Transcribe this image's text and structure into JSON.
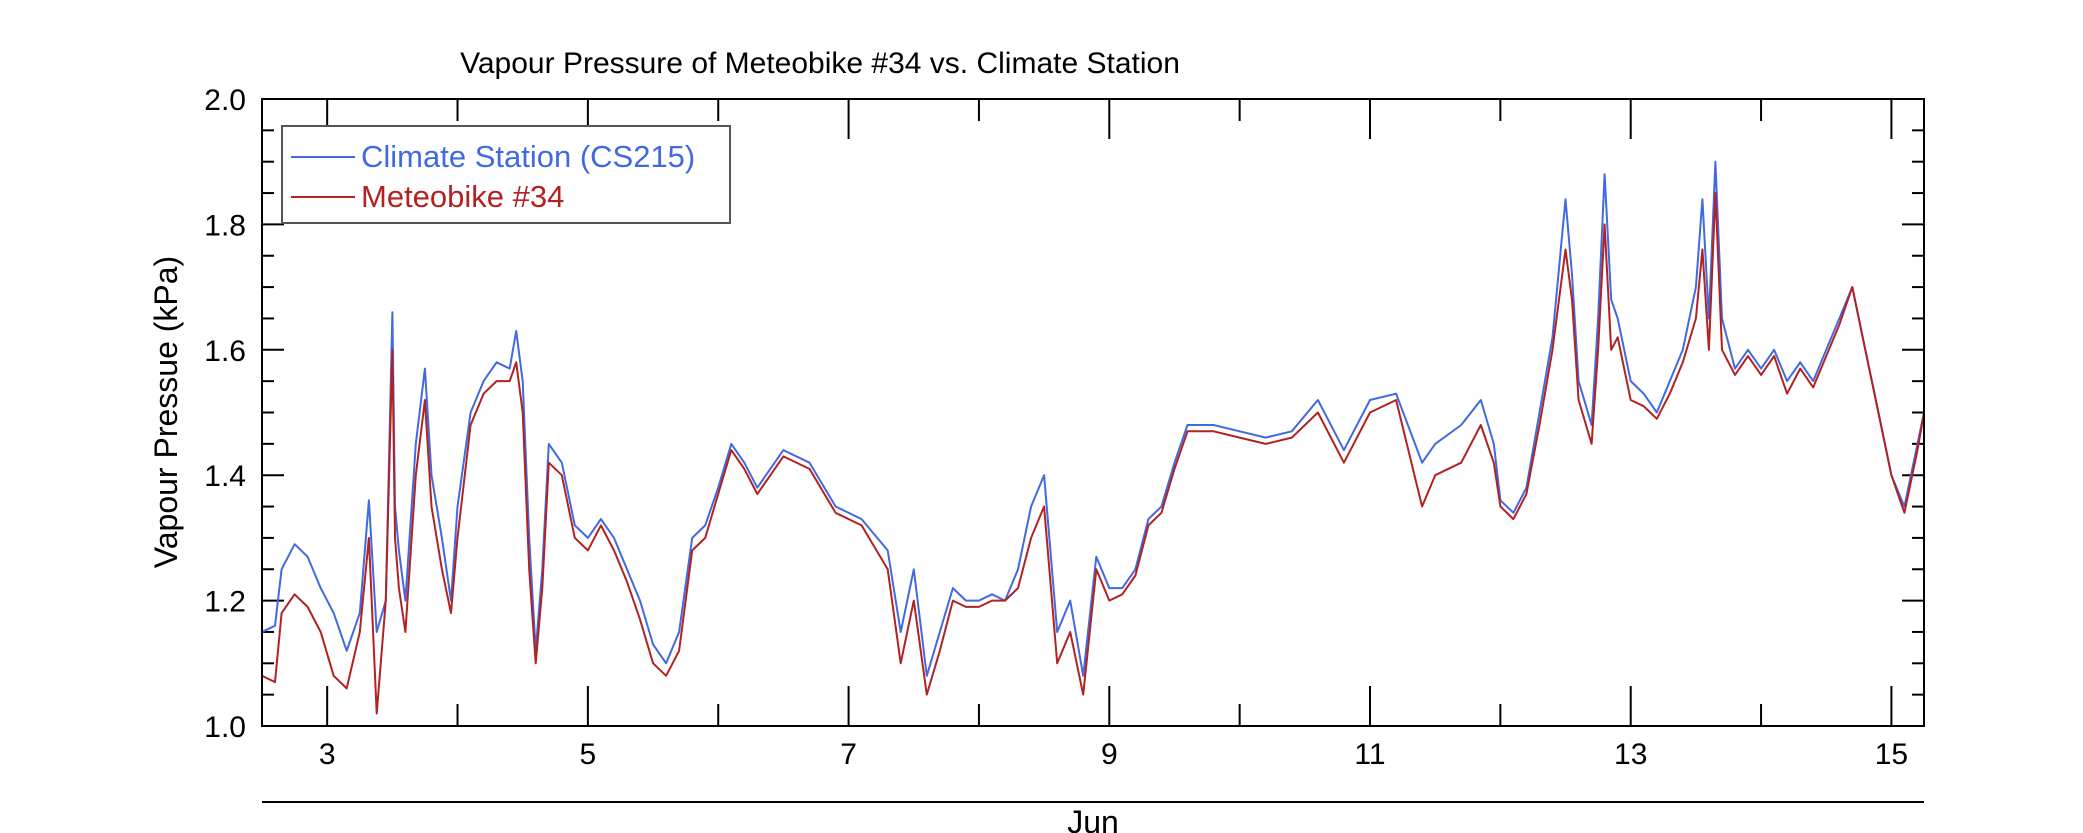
{
  "chart_data": {
    "type": "line",
    "title": "Vapour Pressure of Meteobike #34 vs. Climate Station",
    "ylabel": "Vapour Pressue (kPa)",
    "xlabel": "Jun",
    "xlim": [
      2.5,
      15.25
    ],
    "ylim": [
      1.0,
      2.0
    ],
    "x_ticks": [
      3,
      5,
      7,
      9,
      11,
      13,
      15
    ],
    "x_tick_labels": [
      "3",
      "5",
      "7",
      "9",
      "11",
      "13",
      "15"
    ],
    "y_ticks": [
      1.0,
      1.2,
      1.4,
      1.6,
      1.8,
      2.0
    ],
    "y_tick_labels": [
      "1.0",
      "1.2",
      "1.4",
      "1.6",
      "1.8",
      "2.0"
    ],
    "grid": false,
    "legend_position": "top-left",
    "series": [
      {
        "name": "Climate Station (CS215)",
        "color": "#4169e1",
        "x": [
          2.5,
          2.6,
          2.65,
          2.75,
          2.85,
          2.95,
          3.05,
          3.15,
          3.25,
          3.32,
          3.38,
          3.45,
          3.5,
          3.52,
          3.55,
          3.6,
          3.68,
          3.75,
          3.8,
          3.88,
          3.95,
          4.0,
          4.1,
          4.2,
          4.3,
          4.4,
          4.45,
          4.5,
          4.55,
          4.6,
          4.65,
          4.7,
          4.8,
          4.9,
          5.0,
          5.1,
          5.2,
          5.3,
          5.4,
          5.5,
          5.6,
          5.7,
          5.8,
          5.9,
          6.0,
          6.1,
          6.2,
          6.3,
          6.5,
          6.7,
          6.9,
          7.1,
          7.3,
          7.4,
          7.5,
          7.6,
          7.7,
          7.8,
          7.9,
          8.0,
          8.1,
          8.2,
          8.3,
          8.4,
          8.5,
          8.6,
          8.7,
          8.8,
          8.9,
          9.0,
          9.1,
          9.2,
          9.3,
          9.4,
          9.5,
          9.6,
          9.8,
          10.0,
          10.2,
          10.4,
          10.6,
          10.8,
          11.0,
          11.2,
          11.4,
          11.5,
          11.7,
          11.85,
          11.95,
          12.0,
          12.1,
          12.2,
          12.3,
          12.4,
          12.5,
          12.55,
          12.6,
          12.7,
          12.75,
          12.8,
          12.85,
          12.9,
          13.0,
          13.1,
          13.2,
          13.3,
          13.4,
          13.5,
          13.55,
          13.6,
          13.65,
          13.7,
          13.8,
          13.9,
          14.0,
          14.1,
          14.2,
          14.3,
          14.4,
          14.5,
          14.6,
          14.7,
          14.8,
          14.9,
          15.0,
          15.1,
          15.2,
          15.25
        ],
        "y": [
          1.15,
          1.16,
          1.25,
          1.29,
          1.27,
          1.22,
          1.18,
          1.12,
          1.18,
          1.36,
          1.15,
          1.2,
          1.66,
          1.35,
          1.28,
          1.2,
          1.45,
          1.57,
          1.4,
          1.3,
          1.2,
          1.35,
          1.5,
          1.55,
          1.58,
          1.57,
          1.63,
          1.55,
          1.3,
          1.12,
          1.25,
          1.45,
          1.42,
          1.32,
          1.3,
          1.33,
          1.3,
          1.25,
          1.2,
          1.13,
          1.1,
          1.15,
          1.3,
          1.32,
          1.38,
          1.45,
          1.42,
          1.38,
          1.44,
          1.42,
          1.35,
          1.33,
          1.28,
          1.15,
          1.25,
          1.08,
          1.15,
          1.22,
          1.2,
          1.2,
          1.21,
          1.2,
          1.25,
          1.35,
          1.4,
          1.15,
          1.2,
          1.08,
          1.27,
          1.22,
          1.22,
          1.25,
          1.33,
          1.35,
          1.42,
          1.48,
          1.48,
          1.47,
          1.46,
          1.47,
          1.52,
          1.44,
          1.52,
          1.53,
          1.42,
          1.45,
          1.48,
          1.52,
          1.45,
          1.36,
          1.34,
          1.38,
          1.5,
          1.62,
          1.84,
          1.72,
          1.55,
          1.48,
          1.65,
          1.88,
          1.68,
          1.65,
          1.55,
          1.53,
          1.5,
          1.55,
          1.6,
          1.7,
          1.84,
          1.65,
          1.9,
          1.65,
          1.57,
          1.6,
          1.57,
          1.6,
          1.55,
          1.58,
          1.55,
          1.6,
          1.65,
          1.7,
          1.6,
          1.5,
          1.4,
          1.35,
          1.45,
          1.5
        ]
      },
      {
        "name": "Meteobike #34",
        "color": "#b22222",
        "x": [
          2.5,
          2.6,
          2.65,
          2.75,
          2.85,
          2.95,
          3.05,
          3.15,
          3.25,
          3.32,
          3.38,
          3.45,
          3.5,
          3.52,
          3.55,
          3.6,
          3.68,
          3.75,
          3.8,
          3.88,
          3.95,
          4.0,
          4.1,
          4.2,
          4.3,
          4.4,
          4.45,
          4.5,
          4.55,
          4.6,
          4.65,
          4.7,
          4.8,
          4.9,
          5.0,
          5.1,
          5.2,
          5.3,
          5.4,
          5.5,
          5.6,
          5.7,
          5.8,
          5.9,
          6.0,
          6.1,
          6.2,
          6.3,
          6.5,
          6.7,
          6.9,
          7.1,
          7.3,
          7.4,
          7.5,
          7.6,
          7.7,
          7.8,
          7.9,
          8.0,
          8.1,
          8.2,
          8.3,
          8.4,
          8.5,
          8.6,
          8.7,
          8.8,
          8.9,
          9.0,
          9.1,
          9.2,
          9.3,
          9.4,
          9.5,
          9.6,
          9.8,
          10.0,
          10.2,
          10.4,
          10.6,
          10.8,
          11.0,
          11.2,
          11.4,
          11.5,
          11.7,
          11.85,
          11.95,
          12.0,
          12.1,
          12.2,
          12.3,
          12.4,
          12.5,
          12.55,
          12.6,
          12.7,
          12.75,
          12.8,
          12.85,
          12.9,
          13.0,
          13.1,
          13.2,
          13.3,
          13.4,
          13.5,
          13.55,
          13.6,
          13.65,
          13.7,
          13.8,
          13.9,
          14.0,
          14.1,
          14.2,
          14.3,
          14.4,
          14.5,
          14.6,
          14.7,
          14.8,
          14.9,
          15.0,
          15.1,
          15.2,
          15.25
        ],
        "y": [
          1.08,
          1.07,
          1.18,
          1.21,
          1.19,
          1.15,
          1.08,
          1.06,
          1.15,
          1.3,
          1.02,
          1.2,
          1.6,
          1.3,
          1.22,
          1.15,
          1.4,
          1.52,
          1.35,
          1.25,
          1.18,
          1.3,
          1.48,
          1.53,
          1.55,
          1.55,
          1.58,
          1.5,
          1.25,
          1.1,
          1.22,
          1.42,
          1.4,
          1.3,
          1.28,
          1.32,
          1.28,
          1.23,
          1.17,
          1.1,
          1.08,
          1.12,
          1.28,
          1.3,
          1.37,
          1.44,
          1.41,
          1.37,
          1.43,
          1.41,
          1.34,
          1.32,
          1.25,
          1.1,
          1.2,
          1.05,
          1.12,
          1.2,
          1.19,
          1.19,
          1.2,
          1.2,
          1.22,
          1.3,
          1.35,
          1.1,
          1.15,
          1.05,
          1.25,
          1.2,
          1.21,
          1.24,
          1.32,
          1.34,
          1.41,
          1.47,
          1.47,
          1.46,
          1.45,
          1.46,
          1.5,
          1.42,
          1.5,
          1.52,
          1.35,
          1.4,
          1.42,
          1.48,
          1.42,
          1.35,
          1.33,
          1.37,
          1.48,
          1.6,
          1.76,
          1.68,
          1.52,
          1.45,
          1.6,
          1.8,
          1.6,
          1.62,
          1.52,
          1.51,
          1.49,
          1.53,
          1.58,
          1.65,
          1.76,
          1.6,
          1.85,
          1.6,
          1.56,
          1.59,
          1.56,
          1.59,
          1.53,
          1.57,
          1.54,
          1.59,
          1.64,
          1.7,
          1.6,
          1.5,
          1.4,
          1.34,
          1.44,
          1.5
        ]
      }
    ]
  }
}
